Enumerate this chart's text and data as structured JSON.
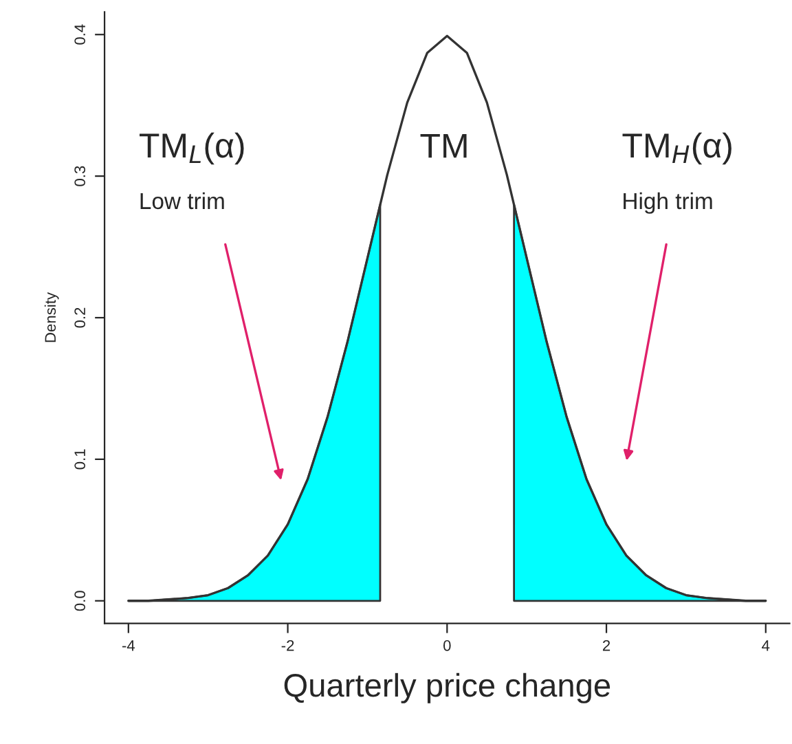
{
  "chart_data": {
    "type": "line",
    "xlabel": "Quarterly price change",
    "ylabel": "Density",
    "xlim": [
      -4.3,
      4.3
    ],
    "ylim": [
      -0.016,
      0.416
    ],
    "xticks": [
      -4,
      -2,
      0,
      2,
      4
    ],
    "yticks": [
      {
        "value": 0,
        "label": "0.0"
      },
      0.1,
      0.2,
      0.3,
      0.4
    ],
    "series": [
      {
        "type": "area",
        "color": "#00ffff",
        "x": [
          -4,
          -3.75,
          -3.5,
          -3.25,
          -3,
          -2.75,
          -2.5,
          -2.25,
          -2,
          -1.75,
          -1.5,
          -1.25,
          -1,
          -0.84
        ],
        "values": [
          0.0,
          0.0,
          0.001,
          0.002,
          0.004,
          0.009,
          0.018,
          0.032,
          0.054,
          0.086,
          0.13,
          0.183,
          0.242,
          0.28
        ]
      },
      {
        "type": "area",
        "color": "#00ffff",
        "x": [
          0.84,
          1,
          1.25,
          1.5,
          1.75,
          2,
          2.25,
          2.5,
          2.75,
          3,
          3.25,
          3.5,
          3.75,
          4
        ],
        "values": [
          0.28,
          0.242,
          0.183,
          0.13,
          0.086,
          0.054,
          0.032,
          0.018,
          0.009,
          0.004,
          0.002,
          0.001,
          0.0,
          0.0
        ]
      },
      {
        "color": "#333333",
        "x": [
          -4,
          -3.75,
          -3.5,
          -3.25,
          -3,
          -2.75,
          -2.5,
          -2.25,
          -2,
          -1.75,
          -1.5,
          -1.25,
          -1,
          -0.75,
          -0.5,
          -0.25,
          0,
          0.25,
          0.5,
          0.75,
          1,
          1.25,
          1.5,
          1.75,
          2,
          2.25,
          2.5,
          2.75,
          3,
          3.25,
          3.5,
          3.75,
          4
        ],
        "values": [
          0.0,
          0.0,
          0.001,
          0.002,
          0.004,
          0.009,
          0.018,
          0.032,
          0.054,
          0.086,
          0.13,
          0.183,
          0.242,
          0.301,
          0.352,
          0.387,
          0.399,
          0.387,
          0.352,
          0.301,
          0.242,
          0.183,
          0.13,
          0.086,
          0.054,
          0.032,
          0.018,
          0.009,
          0.004,
          0.002,
          0.001,
          0.0,
          0.0
        ]
      }
    ],
    "annotations": [
      "TM$_{L}$(α)",
      "Low trim",
      "TM",
      "TM$_{H}$(α)",
      "High trim"
    ]
  }
}
